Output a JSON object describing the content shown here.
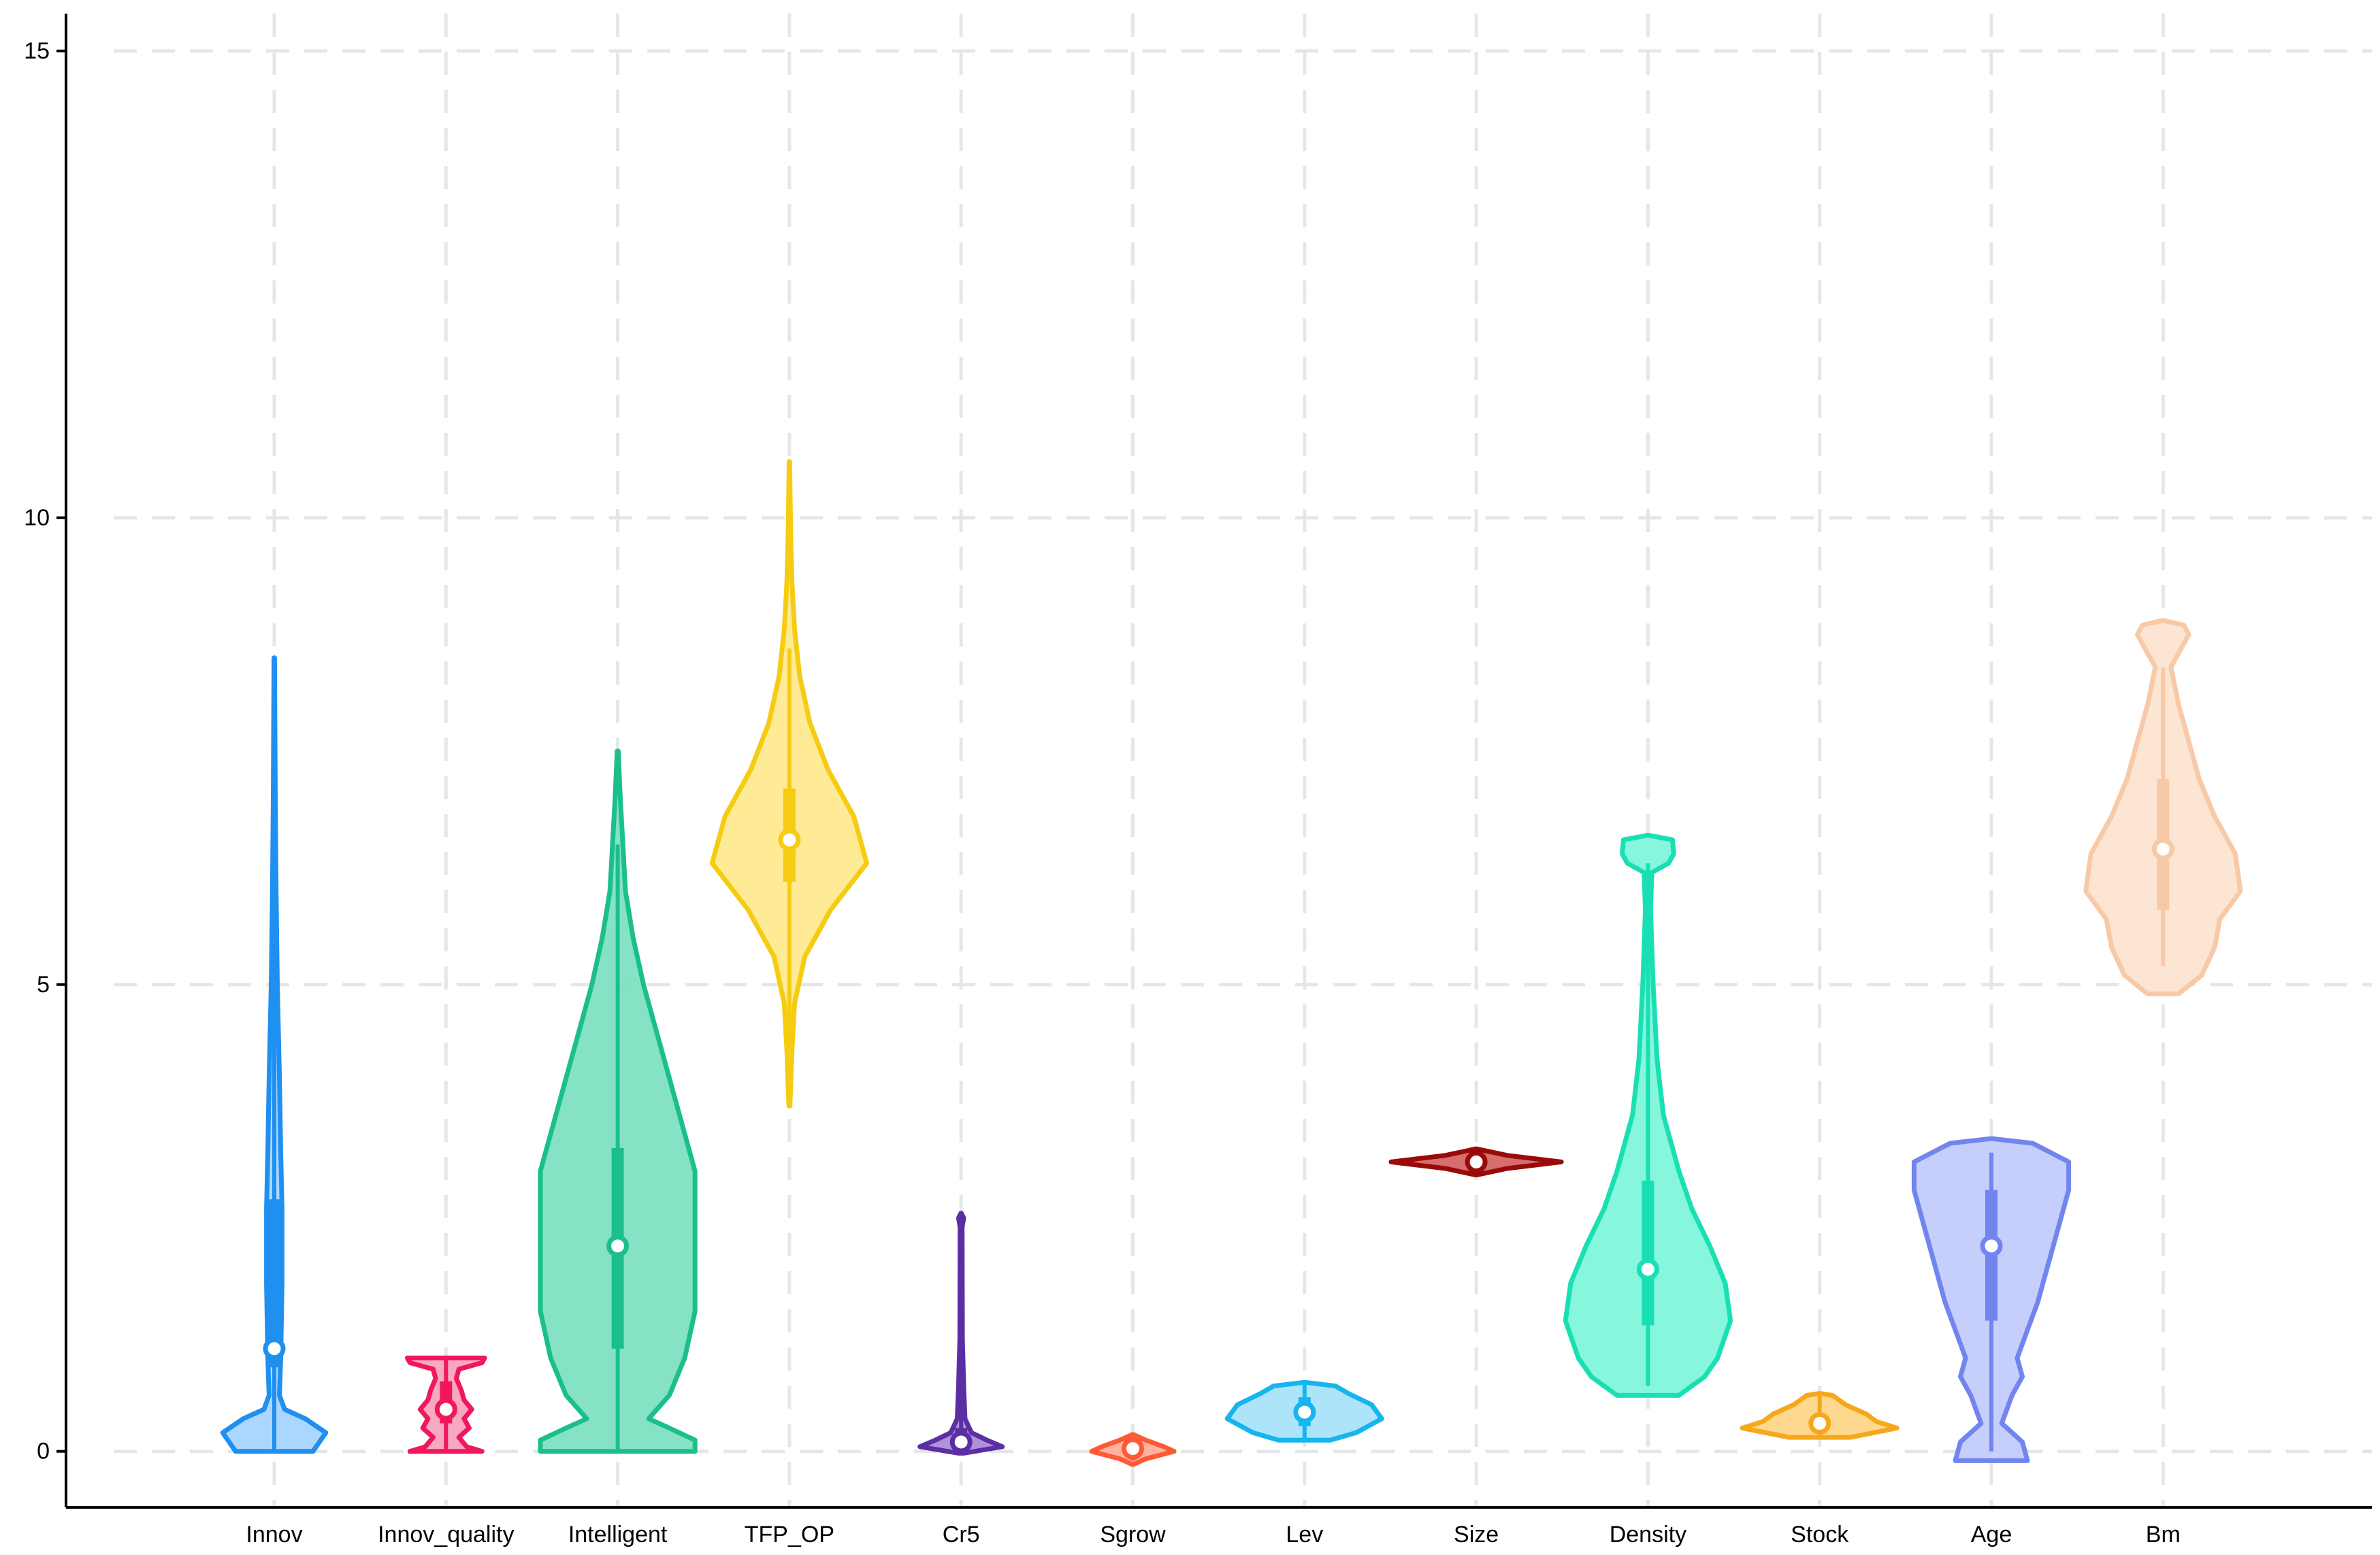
{
  "chart_data": {
    "type": "violin",
    "title": "",
    "xlabel": "",
    "ylabel": "",
    "ylim": [
      -0.6,
      15.4
    ],
    "yticks": [
      0,
      5,
      10,
      15
    ],
    "ytick_labels": [
      "0",
      "5",
      "10",
      "15"
    ],
    "grid": true,
    "legend": "none",
    "categories": [
      "Innov",
      "Innov_quality",
      "Intelligent",
      "TFP_OP",
      "Cr5",
      "Sgrow",
      "Lev",
      "Size",
      "Density",
      "Stock",
      "Age",
      "Bm"
    ],
    "series": [
      {
        "category": "Innov",
        "color": "#1f8ff0",
        "fill": "#a6d4ff",
        "fill_opacity": 0.95,
        "median": 1.1,
        "q1": 0.9,
        "q3": 2.7,
        "whisker_low": 0.0,
        "whisker_high": 6.7,
        "profile": [
          [
            0.0,
            0.15
          ],
          [
            0.2,
            0.2
          ],
          [
            0.35,
            0.12
          ],
          [
            0.45,
            0.04
          ],
          [
            0.6,
            0.02
          ],
          [
            1.0,
            0.025
          ],
          [
            1.8,
            0.03
          ],
          [
            2.6,
            0.03
          ],
          [
            3.2,
            0.025
          ],
          [
            4.0,
            0.02
          ],
          [
            5.0,
            0.012
          ],
          [
            6.0,
            0.007
          ],
          [
            7.0,
            0.004
          ],
          [
            8.5,
            0.001
          ]
        ]
      },
      {
        "category": "Innov_quality",
        "color": "#f0185a",
        "fill": "#f9a3c0",
        "fill_opacity": 0.95,
        "median": 0.45,
        "q1": 0.3,
        "q3": 0.75,
        "whisker_low": 0.0,
        "whisker_high": 1.0,
        "profile": [
          [
            0.0,
            0.14
          ],
          [
            0.05,
            0.08
          ],
          [
            0.15,
            0.05
          ],
          [
            0.25,
            0.09
          ],
          [
            0.35,
            0.07
          ],
          [
            0.45,
            0.1
          ],
          [
            0.55,
            0.07
          ],
          [
            0.65,
            0.06
          ],
          [
            0.78,
            0.04
          ],
          [
            0.88,
            0.05
          ],
          [
            0.95,
            0.14
          ],
          [
            1.0,
            0.15
          ]
        ]
      },
      {
        "category": "Intelligent",
        "color": "#1cbf8c",
        "fill": "#7fe0c2",
        "fill_opacity": 0.95,
        "median": 2.2,
        "q1": 1.1,
        "q3": 3.25,
        "whisker_low": 0.0,
        "whisker_high": 6.5,
        "profile": [
          [
            0.0,
            0.3
          ],
          [
            0.12,
            0.3
          ],
          [
            0.25,
            0.2
          ],
          [
            0.35,
            0.12
          ],
          [
            0.6,
            0.2
          ],
          [
            1.0,
            0.26
          ],
          [
            1.5,
            0.3
          ],
          [
            2.0,
            0.3
          ],
          [
            2.5,
            0.3
          ],
          [
            3.0,
            0.3
          ],
          [
            3.5,
            0.25
          ],
          [
            4.0,
            0.2
          ],
          [
            4.5,
            0.15
          ],
          [
            5.0,
            0.1
          ],
          [
            5.5,
            0.06
          ],
          [
            6.0,
            0.03
          ],
          [
            7.0,
            0.01
          ],
          [
            7.5,
            0.002
          ]
        ]
      },
      {
        "category": "TFP_OP",
        "color": "#f5cc12",
        "fill": "#ffe98f",
        "fill_opacity": 0.95,
        "median": 6.55,
        "q1": 6.1,
        "q3": 7.1,
        "whisker_low": 4.3,
        "whisker_high": 8.6,
        "profile": [
          [
            3.7,
            0.002
          ],
          [
            4.3,
            0.01
          ],
          [
            4.8,
            0.02
          ],
          [
            5.3,
            0.06
          ],
          [
            5.8,
            0.16
          ],
          [
            6.3,
            0.3
          ],
          [
            6.8,
            0.25
          ],
          [
            7.3,
            0.15
          ],
          [
            7.8,
            0.08
          ],
          [
            8.3,
            0.04
          ],
          [
            8.8,
            0.02
          ],
          [
            9.3,
            0.01
          ],
          [
            9.8,
            0.005
          ],
          [
            10.6,
            0.001
          ]
        ]
      },
      {
        "category": "Cr5",
        "color": "#5b2fa3",
        "fill": "#a98ed6",
        "fill_opacity": 0.95,
        "median": 0.1,
        "q1": 0.05,
        "q3": 0.25,
        "whisker_low": 0.0,
        "whisker_high": 2.5,
        "profile": [
          [
            -0.02,
            0.01
          ],
          [
            0.05,
            0.16
          ],
          [
            0.12,
            0.1
          ],
          [
            0.2,
            0.04
          ],
          [
            0.35,
            0.015
          ],
          [
            0.7,
            0.01
          ],
          [
            1.2,
            0.005
          ],
          [
            2.4,
            0.004
          ],
          [
            2.5,
            0.01
          ],
          [
            2.55,
            0.001
          ]
        ]
      },
      {
        "category": "Sgrow",
        "color": "#ff5a36",
        "fill": "#ffae99",
        "fill_opacity": 0.95,
        "median": 0.03,
        "q1": 0.0,
        "q3": 0.08,
        "whisker_low": -0.1,
        "whisker_high": 0.15,
        "profile": [
          [
            -0.14,
            0.002
          ],
          [
            -0.08,
            0.05
          ],
          [
            0.0,
            0.16
          ],
          [
            0.05,
            0.12
          ],
          [
            0.12,
            0.05
          ],
          [
            0.18,
            0.002
          ]
        ]
      },
      {
        "category": "Lev",
        "color": "#17b5ee",
        "fill": "#a9e3fa",
        "fill_opacity": 0.95,
        "median": 0.42,
        "q1": 0.27,
        "q3": 0.58,
        "whisker_low": 0.12,
        "whisker_high": 0.72,
        "profile": [
          [
            0.12,
            0.1
          ],
          [
            0.2,
            0.2
          ],
          [
            0.35,
            0.3
          ],
          [
            0.5,
            0.26
          ],
          [
            0.62,
            0.17
          ],
          [
            0.7,
            0.12
          ],
          [
            0.74,
            0.001
          ]
        ]
      },
      {
        "category": "Size",
        "color": "#990a0a",
        "fill": "#d46666",
        "fill_opacity": 0.95,
        "median": 3.1,
        "q1": 3.06,
        "q3": 3.14,
        "whisker_low": 3.0,
        "whisker_high": 3.2,
        "profile": [
          [
            2.96,
            0.001
          ],
          [
            3.03,
            0.12
          ],
          [
            3.1,
            0.33
          ],
          [
            3.17,
            0.12
          ],
          [
            3.24,
            0.001
          ]
        ]
      },
      {
        "category": "Density",
        "color": "#19e0b3",
        "fill": "#7ff5db",
        "fill_opacity": 0.95,
        "median": 1.95,
        "q1": 1.35,
        "q3": 2.9,
        "whisker_low": 0.7,
        "whisker_high": 6.3,
        "profile": [
          [
            0.6,
            0.12
          ],
          [
            0.8,
            0.22
          ],
          [
            1.0,
            0.27
          ],
          [
            1.4,
            0.32
          ],
          [
            1.8,
            0.3
          ],
          [
            2.2,
            0.24
          ],
          [
            2.6,
            0.17
          ],
          [
            3.0,
            0.12
          ],
          [
            3.6,
            0.06
          ],
          [
            4.2,
            0.035
          ],
          [
            5.0,
            0.02
          ],
          [
            5.8,
            0.01
          ],
          [
            6.2,
            0.015
          ],
          [
            6.3,
            0.08
          ],
          [
            6.4,
            0.1
          ],
          [
            6.55,
            0.095
          ],
          [
            6.6,
            0.001
          ]
        ]
      },
      {
        "category": "Stock",
        "color": "#f5a81c",
        "fill": "#ffd68a",
        "fill_opacity": 0.95,
        "median": 0.3,
        "q1": 0.25,
        "q3": 0.38,
        "whisker_low": 0.15,
        "whisker_high": 0.6,
        "profile": [
          [
            0.15,
            0.12
          ],
          [
            0.25,
            0.3
          ],
          [
            0.32,
            0.22
          ],
          [
            0.4,
            0.18
          ],
          [
            0.5,
            0.1
          ],
          [
            0.6,
            0.05
          ],
          [
            0.62,
            0.001
          ]
        ]
      },
      {
        "category": "Age",
        "color": "#7285ef",
        "fill": "#c3ccfb",
        "fill_opacity": 0.95,
        "median": 2.2,
        "q1": 1.4,
        "q3": 2.8,
        "whisker_low": 0.0,
        "whisker_high": 3.2,
        "profile": [
          [
            -0.1,
            0.14
          ],
          [
            0.1,
            0.12
          ],
          [
            0.3,
            0.04
          ],
          [
            0.6,
            0.08
          ],
          [
            0.8,
            0.12
          ],
          [
            1.0,
            0.1
          ],
          [
            1.3,
            0.14
          ],
          [
            1.6,
            0.18
          ],
          [
            2.0,
            0.22
          ],
          [
            2.4,
            0.26
          ],
          [
            2.8,
            0.3
          ],
          [
            3.1,
            0.3
          ],
          [
            3.3,
            0.16
          ],
          [
            3.35,
            0.001
          ]
        ]
      },
      {
        "category": "Bm",
        "color": "#f8c9a6",
        "fill": "#fde4d2",
        "fill_opacity": 0.95,
        "median": 6.45,
        "q1": 5.8,
        "q3": 7.2,
        "whisker_low": 5.2,
        "whisker_high": 8.4,
        "profile": [
          [
            4.9,
            0.06
          ],
          [
            5.1,
            0.15
          ],
          [
            5.4,
            0.2
          ],
          [
            5.7,
            0.22
          ],
          [
            6.0,
            0.3
          ],
          [
            6.4,
            0.28
          ],
          [
            6.8,
            0.2
          ],
          [
            7.2,
            0.14
          ],
          [
            7.6,
            0.1
          ],
          [
            8.0,
            0.06
          ],
          [
            8.4,
            0.03
          ],
          [
            8.6,
            0.07
          ],
          [
            8.75,
            0.1
          ],
          [
            8.85,
            0.08
          ],
          [
            8.9,
            0.001
          ]
        ]
      }
    ]
  }
}
